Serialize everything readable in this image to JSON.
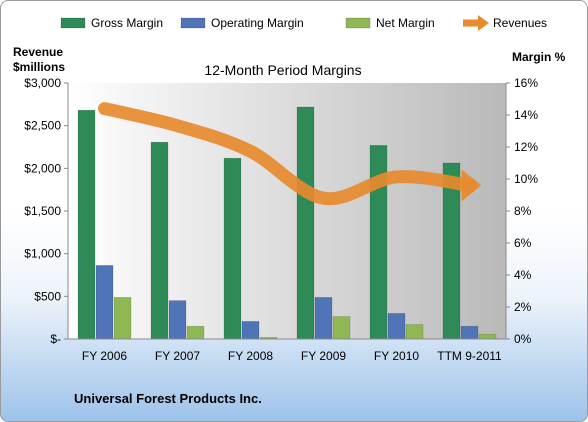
{
  "chart_data": {
    "type": "bar",
    "title": "12-Month Period Margins",
    "left_axis_label": [
      "Revenue",
      "$millions"
    ],
    "right_axis_label": "Margin %",
    "footer": "Universal Forest Products Inc.",
    "categories": [
      "FY 2006",
      "FY 2007",
      "FY 2008",
      "FY 2009",
      "FY 2010",
      "TTM 9-2011"
    ],
    "left_ticks": [
      "$-",
      "$500",
      "$1,000",
      "$1,500",
      "$2,000",
      "$2,500",
      "$3,000"
    ],
    "right_ticks": [
      "0%",
      "2%",
      "4%",
      "6%",
      "8%",
      "10%",
      "12%",
      "14%",
      "16%"
    ],
    "ylim_revenue": [
      0,
      3000
    ],
    "ylim_margin": [
      0,
      16
    ],
    "legend_position": "top",
    "grid": false,
    "series": [
      {
        "name": "Gross Margin",
        "kind": "bar",
        "axis": "margin",
        "color": "#2e8b57",
        "values": [
          14.3,
          12.3,
          11.3,
          14.5,
          12.1,
          11.0
        ]
      },
      {
        "name": "Operating Margin",
        "kind": "bar",
        "axis": "margin",
        "color": "#4f74b8",
        "values": [
          4.6,
          2.4,
          1.1,
          2.6,
          1.6,
          0.8
        ]
      },
      {
        "name": "Net Margin",
        "kind": "bar",
        "axis": "margin",
        "color": "#8fb855",
        "values": [
          2.6,
          0.8,
          0.1,
          1.4,
          0.9,
          0.3
        ]
      },
      {
        "name": "Revenues",
        "kind": "line",
        "axis": "revenue",
        "color": "#e88a2e",
        "values": [
          2700,
          2500,
          2200,
          1650,
          1900,
          1800
        ]
      }
    ]
  }
}
